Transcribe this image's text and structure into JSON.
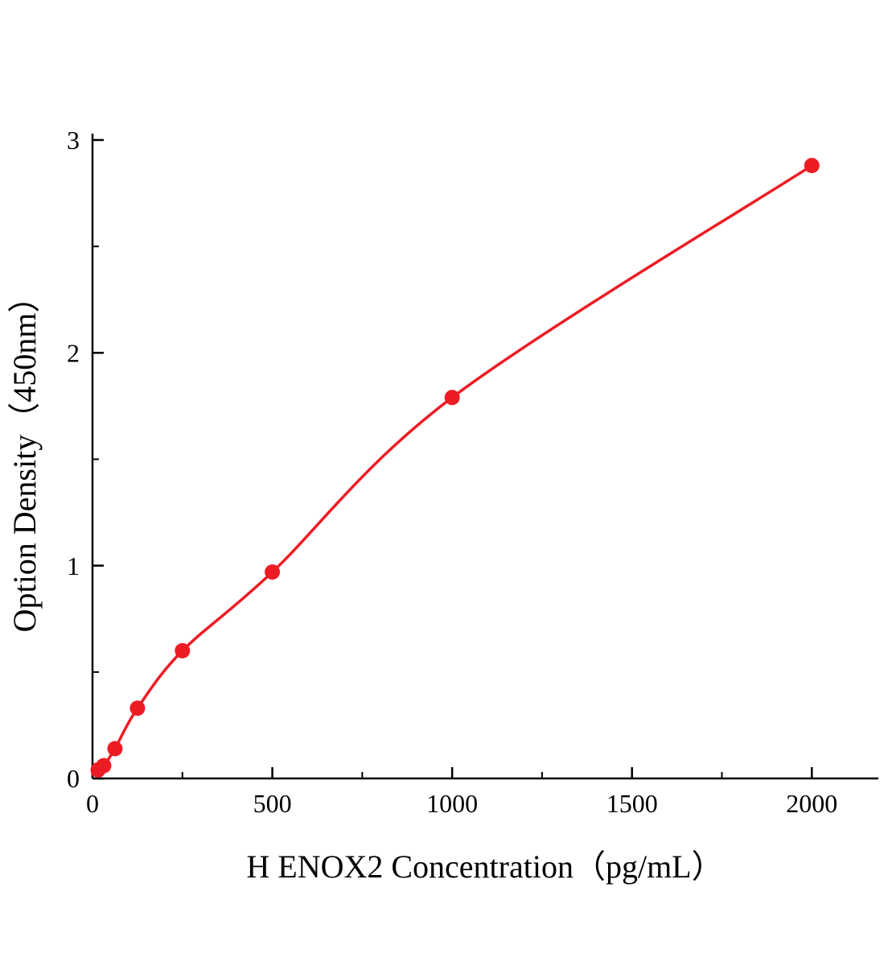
{
  "figure": {
    "background_color": "#ffffff"
  },
  "chart_data": {
    "type": "scatter",
    "title": "",
    "xlabel": "H ENOX2 Concentration（pg/mL）",
    "ylabel": "Option Density（450nm）",
    "x": [
      15.625,
      31.25,
      62.5,
      125,
      250,
      500,
      1000,
      2000
    ],
    "y": [
      0.04,
      0.06,
      0.14,
      0.33,
      0.6,
      0.97,
      1.79,
      2.88
    ],
    "curve_start": [
      0,
      0.02
    ],
    "xlim": [
      0,
      2185
    ],
    "ylim": [
      0,
      3.03
    ],
    "x_major_ticks": [
      0,
      500,
      1000,
      1500,
      2000
    ],
    "x_minor_ticks": [
      250,
      750,
      1250,
      1750
    ],
    "y_major_ticks": [
      0,
      1,
      2,
      3
    ],
    "y_minor_ticks": [
      0.5,
      1.5,
      2.5
    ],
    "grid": false,
    "legend": "none",
    "line_color": "#ed1c24",
    "point_color": "#ed1c24",
    "axis_color": "#000000"
  }
}
